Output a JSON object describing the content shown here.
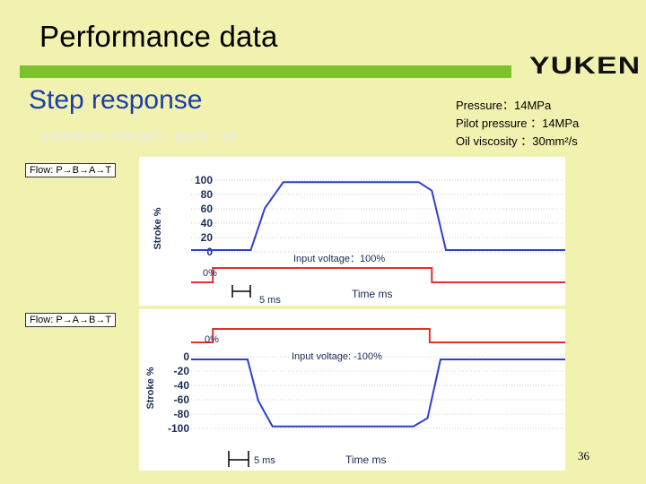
{
  "slide": {
    "title": "Performance data",
    "brand": "YUKEN",
    "subtitle": "Step response",
    "model": "LSVHG-04-750-(2P)－(E)(T)－10",
    "conditions": [
      "Pressure：14MPa",
      "Pilot pressure ：14MPa",
      "Oil viscosity ：30mm²/s"
    ],
    "page_number": "36"
  },
  "colors": {
    "stroke_line": "#2f3fd0",
    "input_line": "#e03030",
    "grid_line": "#9aa0a8",
    "brand_bar": "#7cc22c"
  },
  "chart_data": [
    {
      "type": "line",
      "flow_label": "Flow: P→B→A→T",
      "ylabel": "Stroke %",
      "xlabel": "Time ms",
      "yticks": [
        "100",
        "80",
        "60",
        "40",
        "20",
        "0"
      ],
      "ylim": [
        0,
        100
      ],
      "scale_label": "5 ms",
      "input_label": "Input voltage：100%",
      "input_baseline_label": "0%",
      "series": [
        {
          "x": [
            0,
            5.5,
            6.8,
            8.5,
            21,
            22.2,
            23.5,
            34.5
          ],
          "values": [
            0,
            0,
            60,
            97,
            97,
            85,
            0,
            0
          ]
        },
        {
          "x": [
            0,
            2,
            2,
            22.2,
            22.2,
            34.5
          ],
          "values": [
            0,
            0,
            100,
            100,
            0,
            0
          ]
        }
      ]
    },
    {
      "type": "line",
      "flow_label": "Flow: P→A→B→T",
      "ylabel": "Stroke %",
      "xlabel": "Time ms",
      "yticks": [
        "0",
        "-20",
        "-40",
        "-60",
        "-80",
        "-100"
      ],
      "ylim": [
        -100,
        0
      ],
      "scale_label": "5 ms",
      "input_label": "Input voltage: -100%",
      "input_baseline_label": "0%",
      "series": [
        {
          "x": [
            0,
            5.2,
            6.2,
            7.5,
            20.5,
            21.8,
            23,
            34.5
          ],
          "values": [
            0,
            0,
            -60,
            -97,
            -97,
            -85,
            0,
            0
          ]
        },
        {
          "x": [
            0,
            2,
            2,
            22,
            22,
            34.5
          ],
          "values": [
            0,
            0,
            -100,
            -100,
            0,
            0
          ]
        }
      ]
    }
  ]
}
